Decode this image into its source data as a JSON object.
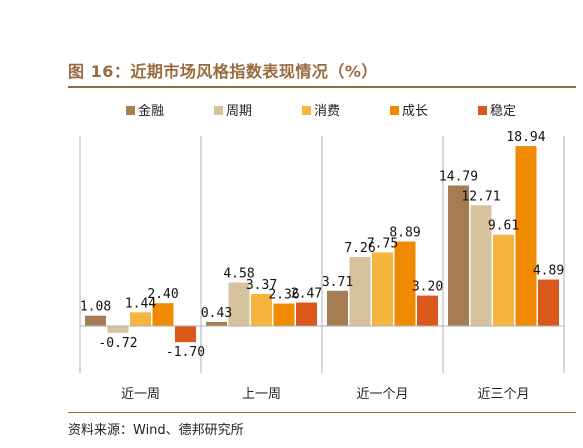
{
  "figure": {
    "title": "图 16：近期市场风格指数表现情况（%）",
    "source": "资料来源：Wind、德邦研究所"
  },
  "colors": {
    "accent": "#9a6a3f",
    "series": [
      "#a67c52",
      "#d7c29e",
      "#f6b53f",
      "#f08a00",
      "#d9581a"
    ]
  },
  "chart_data": {
    "type": "bar",
    "title": "图 16：近期市场风格指数表现情况（%）",
    "categories": [
      "近一周",
      "上一周",
      "近一个月",
      "近三个月"
    ],
    "series": [
      {
        "name": "金融",
        "values": [
          1.08,
          0.43,
          3.71,
          14.79
        ]
      },
      {
        "name": "周期",
        "values": [
          -0.72,
          4.58,
          7.26,
          12.71
        ]
      },
      {
        "name": "消费",
        "values": [
          1.44,
          3.37,
          7.75,
          9.61
        ]
      },
      {
        "name": "成长",
        "values": [
          2.4,
          2.36,
          8.89,
          18.94
        ]
      },
      {
        "name": "稳定",
        "values": [
          -1.7,
          2.47,
          3.2,
          4.89
        ]
      }
    ],
    "ylim": [
      -3,
      19
    ],
    "legend": "top",
    "grid": false,
    "data_labels": true
  }
}
